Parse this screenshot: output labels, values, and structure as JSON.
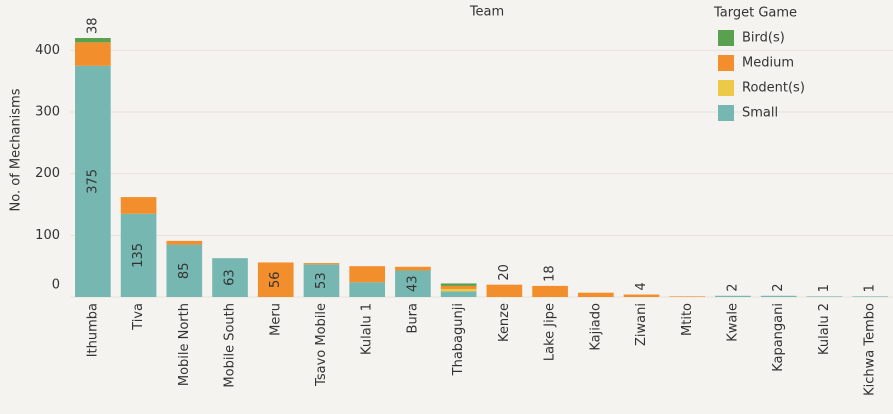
{
  "chart_data": {
    "type": "bar",
    "stacked": true,
    "title": "Team",
    "y_label": "No. of Mechanisms",
    "legend_title": "Target Game",
    "categories": [
      "Ithumba",
      "Tiva",
      "Mobile North",
      "Mobile South",
      "Meru",
      "Tsavo Mobile",
      "Kulalu 1",
      "Bura",
      "Thabagunji",
      "Kenze",
      "Lake Jipe",
      "Kajiado",
      "Ziwani",
      "Mtito",
      "Kwale",
      "Kapangani",
      "Kulalu 2",
      "Kichwa Tembo"
    ],
    "series": [
      {
        "name": "Bird(s)",
        "color": "#59a14f",
        "values": [
          7,
          null,
          null,
          null,
          null,
          null,
          null,
          null,
          4,
          null,
          null,
          null,
          null,
          null,
          null,
          null,
          null,
          null
        ]
      },
      {
        "name": "Medium",
        "color": "#f28e2b",
        "values": [
          38,
          27,
          6,
          null,
          56,
          2,
          26,
          6,
          5,
          20,
          18,
          7,
          4,
          1,
          null,
          null,
          null,
          null
        ],
        "value_labels": [
          "38",
          null,
          null,
          null,
          "56",
          null,
          null,
          null,
          null,
          "20",
          "18",
          null,
          "4",
          null,
          null,
          null,
          null,
          null
        ]
      },
      {
        "name": "Rodent(s)",
        "color": "#edc948",
        "values": [
          null,
          null,
          null,
          null,
          null,
          null,
          null,
          null,
          4,
          null,
          null,
          null,
          null,
          null,
          null,
          null,
          null,
          null
        ]
      },
      {
        "name": "Small",
        "color": "#76b7b2",
        "values": [
          375,
          135,
          85,
          63,
          null,
          53,
          24,
          43,
          9,
          null,
          null,
          null,
          null,
          null,
          2,
          2,
          1,
          1
        ],
        "value_labels": [
          "375",
          "135",
          "85",
          "63",
          null,
          "53",
          null,
          "43",
          null,
          null,
          null,
          null,
          null,
          null,
          "2",
          "2",
          "1",
          "1"
        ]
      }
    ],
    "stack_order": [
      3,
      2,
      1,
      0
    ],
    "ylim": [
      0,
      433
    ],
    "yticks": [
      0,
      100,
      200,
      300,
      400
    ]
  }
}
